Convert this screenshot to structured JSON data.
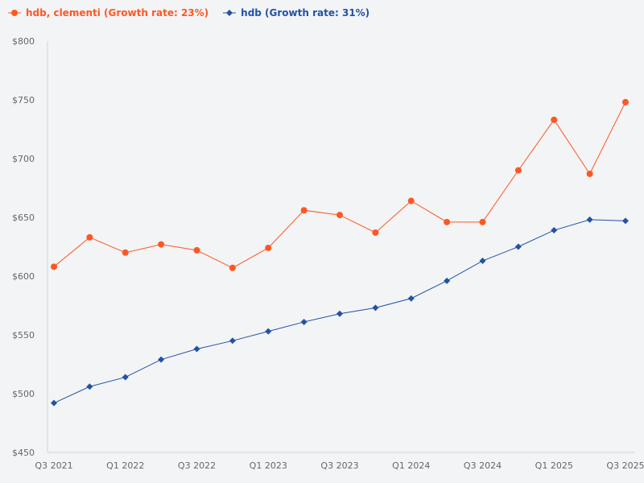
{
  "chart_data": {
    "type": "line",
    "title": "",
    "xlabel": "",
    "ylabel": "",
    "ylim": [
      450,
      800
    ],
    "yticks": [
      450,
      500,
      550,
      600,
      650,
      700,
      750,
      800
    ],
    "ytick_labels": [
      "$450",
      "$500",
      "$550",
      "$600",
      "$650",
      "$700",
      "$750",
      "$800"
    ],
    "x": [
      "Q3 2021",
      "Q4 2021",
      "Q1 2022",
      "Q2 2022",
      "Q3 2022",
      "Q4 2022",
      "Q1 2023",
      "Q2 2023",
      "Q3 2023",
      "Q4 2023",
      "Q1 2024",
      "Q2 2024",
      "Q3 2024",
      "Q4 2024",
      "Q1 2025",
      "Q2 2025",
      "Q3 2025"
    ],
    "xtick_labels": [
      "Q3 2021",
      "Q1 2022",
      "Q3 2022",
      "Q1 2023",
      "Q3 2023",
      "Q1 2024",
      "Q3 2024",
      "Q1 2025",
      "Q3 2025"
    ],
    "grid": false,
    "legend_position": "top-left",
    "series": [
      {
        "name": "hdb, clementi (Growth rate: 23%)",
        "color": "#ff5722",
        "marker": "circle",
        "values": [
          608,
          633,
          620,
          627,
          622,
          607,
          624,
          656,
          652,
          637,
          664,
          646,
          646,
          690,
          733,
          687,
          748
        ]
      },
      {
        "name": "hdb (Growth rate: 31%)",
        "color": "#2352a5",
        "marker": "diamond",
        "values": [
          492,
          506,
          514,
          529,
          538,
          545,
          553,
          561,
          568,
          573,
          581,
          596,
          613,
          625,
          639,
          648,
          647
        ]
      }
    ]
  }
}
